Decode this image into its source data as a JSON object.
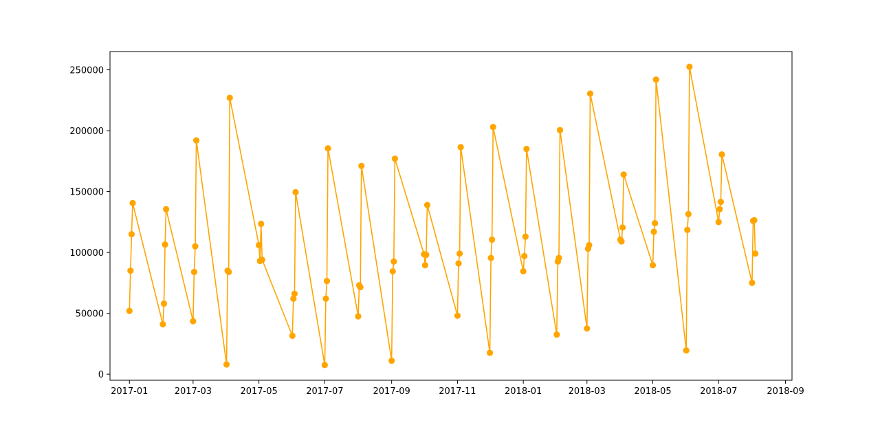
{
  "chart_data": {
    "type": "line",
    "x_type": "date",
    "title": "",
    "xlabel": "",
    "ylabel": "",
    "xlim": [
      "2016-12-14",
      "2018-09-07"
    ],
    "ylim": [
      -5000,
      265000
    ],
    "x_ticks": [
      "2017-01-01",
      "2017-03-01",
      "2017-05-01",
      "2017-07-01",
      "2017-09-01",
      "2017-11-01",
      "2018-01-01",
      "2018-03-01",
      "2018-05-01",
      "2018-07-01",
      "2018-09-01"
    ],
    "x_tick_labels": [
      "2017-01",
      "2017-03",
      "2017-05",
      "2017-07",
      "2017-09",
      "2017-11",
      "2018-01",
      "2018-03",
      "2018-05",
      "2018-07",
      "2018-09"
    ],
    "y_ticks": [
      0,
      50000,
      100000,
      150000,
      200000,
      250000
    ],
    "y_tick_labels": [
      "0",
      "50000",
      "100000",
      "150000",
      "200000",
      "250000"
    ],
    "grid": false,
    "legend": false,
    "colors": {
      "series": "#ffa500",
      "axes": "#000000",
      "background": "#ffffff"
    },
    "series": [
      {
        "marker": "circle",
        "points": [
          [
            "2017-01-01",
            52000
          ],
          [
            "2017-01-02",
            85000
          ],
          [
            "2017-01-03",
            115000
          ],
          [
            "2017-01-04",
            140500
          ],
          [
            "2017-02-01",
            41000
          ],
          [
            "2017-02-02",
            58000
          ],
          [
            "2017-02-03",
            106500
          ],
          [
            "2017-02-04",
            135500
          ],
          [
            "2017-03-01",
            43500
          ],
          [
            "2017-03-02",
            84000
          ],
          [
            "2017-03-03",
            105000
          ],
          [
            "2017-03-04",
            192000
          ],
          [
            "2017-04-01",
            8000
          ],
          [
            "2017-04-02",
            85000
          ],
          [
            "2017-04-03",
            84000
          ],
          [
            "2017-04-04",
            227000
          ],
          [
            "2017-05-01",
            106000
          ],
          [
            "2017-05-02",
            93000
          ],
          [
            "2017-05-03",
            123500
          ],
          [
            "2017-05-04",
            94000
          ],
          [
            "2017-06-01",
            31500
          ],
          [
            "2017-06-02",
            62000
          ],
          [
            "2017-06-03",
            66000
          ],
          [
            "2017-06-04",
            149500
          ],
          [
            "2017-07-01",
            7500
          ],
          [
            "2017-07-02",
            62000
          ],
          [
            "2017-07-03",
            76500
          ],
          [
            "2017-07-04",
            185500
          ],
          [
            "2017-08-01",
            47500
          ],
          [
            "2017-08-02",
            73000
          ],
          [
            "2017-08-03",
            71500
          ],
          [
            "2017-08-04",
            171000
          ],
          [
            "2017-09-01",
            11000
          ],
          [
            "2017-09-02",
            84500
          ],
          [
            "2017-09-03",
            92500
          ],
          [
            "2017-09-04",
            177000
          ],
          [
            "2017-10-01",
            98500
          ],
          [
            "2017-10-02",
            89500
          ],
          [
            "2017-10-03",
            98000
          ],
          [
            "2017-10-04",
            139000
          ],
          [
            "2017-11-01",
            48000
          ],
          [
            "2017-11-02",
            91000
          ],
          [
            "2017-11-03",
            99000
          ],
          [
            "2017-11-04",
            186500
          ],
          [
            "2017-12-01",
            17500
          ],
          [
            "2017-12-02",
            95500
          ],
          [
            "2017-12-03",
            110500
          ],
          [
            "2017-12-04",
            203000
          ],
          [
            "2018-01-01",
            84500
          ],
          [
            "2018-01-02",
            97000
          ],
          [
            "2018-01-03",
            113000
          ],
          [
            "2018-01-04",
            185000
          ],
          [
            "2018-02-01",
            32500
          ],
          [
            "2018-02-02",
            92500
          ],
          [
            "2018-02-03",
            95500
          ],
          [
            "2018-02-04",
            200500
          ],
          [
            "2018-03-01",
            37500
          ],
          [
            "2018-03-02",
            103000
          ],
          [
            "2018-03-03",
            106000
          ],
          [
            "2018-03-04",
            230500
          ],
          [
            "2018-04-01",
            110500
          ],
          [
            "2018-04-02",
            109000
          ],
          [
            "2018-04-03",
            120500
          ],
          [
            "2018-04-04",
            164000
          ],
          [
            "2018-05-01",
            89500
          ],
          [
            "2018-05-02",
            117000
          ],
          [
            "2018-05-03",
            124000
          ],
          [
            "2018-05-04",
            242000
          ],
          [
            "2018-06-01",
            19500
          ],
          [
            "2018-06-02",
            118500
          ],
          [
            "2018-06-03",
            131500
          ],
          [
            "2018-06-04",
            252500
          ],
          [
            "2018-07-01",
            125000
          ],
          [
            "2018-07-02",
            135500
          ],
          [
            "2018-07-03",
            141500
          ],
          [
            "2018-07-04",
            180500
          ],
          [
            "2018-08-01",
            75000
          ],
          [
            "2018-08-02",
            126000
          ],
          [
            "2018-08-03",
            126500
          ],
          [
            "2018-08-04",
            99000
          ]
        ]
      }
    ]
  }
}
